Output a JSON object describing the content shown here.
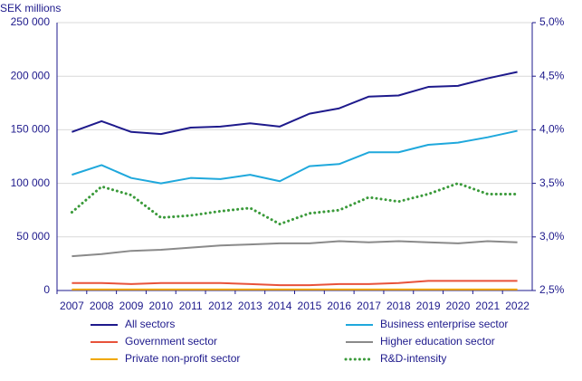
{
  "chart_data": {
    "type": "line",
    "y_axis_label": "SEK millions",
    "categories": [
      "2007",
      "2008",
      "2009",
      "2010",
      "2011",
      "2012",
      "2013",
      "2014",
      "2015",
      "2016",
      "2017",
      "2018",
      "2019",
      "2020",
      "2021",
      "2022"
    ],
    "series": [
      {
        "name": "All sectors",
        "color": "#1e1a8c",
        "values": [
          148000,
          158000,
          148000,
          146000,
          152000,
          153000,
          156000,
          153000,
          165000,
          170000,
          181000,
          182000,
          190000,
          191000,
          198000,
          204000
        ]
      },
      {
        "name": "Business enterprise sector",
        "color": "#1fa8dc",
        "values": [
          108000,
          117000,
          105000,
          100000,
          105000,
          104000,
          108000,
          102000,
          116000,
          118000,
          129000,
          129000,
          136000,
          138000,
          143000,
          149000
        ]
      },
      {
        "name": "Government sector",
        "color": "#e8523a",
        "values": [
          7000,
          7000,
          6000,
          7000,
          7000,
          7000,
          6000,
          5000,
          5000,
          6000,
          6000,
          7000,
          9000,
          9000,
          9000,
          9000
        ]
      },
      {
        "name": "Higher education sector",
        "color": "#8a8a8a",
        "values": [
          32000,
          34000,
          37000,
          38000,
          40000,
          42000,
          43000,
          44000,
          44000,
          46000,
          45000,
          46000,
          45000,
          44000,
          46000,
          45000
        ]
      },
      {
        "name": "Private non-profit sector",
        "color": "#f0a800",
        "values": [
          1000,
          1000,
          1000,
          1000,
          1000,
          1000,
          1000,
          1000,
          1000,
          1000,
          1000,
          1000,
          1000,
          1000,
          1000,
          1000
        ]
      },
      {
        "name": "R&D-intensity",
        "color": "#3a9a3a",
        "axis": "y2",
        "style": "dotted",
        "values": [
          3.23,
          3.47,
          3.39,
          3.18,
          3.2,
          3.24,
          3.27,
          3.12,
          3.22,
          3.25,
          3.37,
          3.33,
          3.4,
          3.5,
          3.4,
          3.4
        ]
      }
    ],
    "ylim": [
      0,
      250000
    ],
    "yticks": [
      0,
      {
        "value": 50000,
        "label": "50 000"
      },
      {
        "value": 100000,
        "label": "100 000"
      },
      {
        "value": 150000,
        "label": "150 000"
      },
      {
        "value": 200000,
        "label": "200 000"
      },
      {
        "value": 250000,
        "label": "250 000"
      }
    ],
    "y2lim": [
      2.5,
      5.0
    ],
    "y2ticks": [
      {
        "value": 2.5,
        "label": "2,5%"
      },
      {
        "value": 3.0,
        "label": "3,0%"
      },
      {
        "value": 3.5,
        "label": "3,5%"
      },
      {
        "value": 4.0,
        "label": "4,0%"
      },
      {
        "value": 4.5,
        "label": "4,5%"
      },
      {
        "value": 5.0,
        "label": "5,0%"
      }
    ],
    "grid": true
  }
}
